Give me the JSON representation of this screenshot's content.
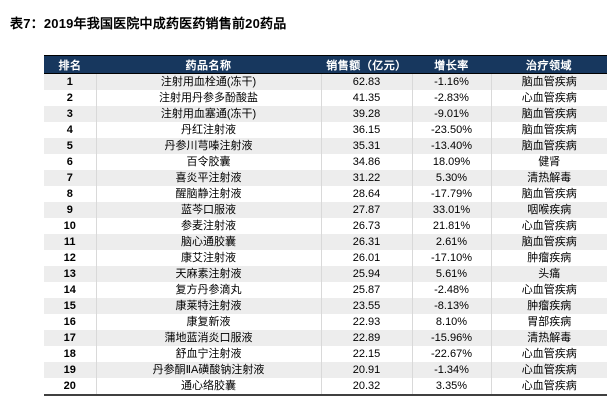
{
  "page": {
    "title": "表7：2019年我国医院中成药医药销售前20药品"
  },
  "colors": {
    "header_bg": "#17375E",
    "header_text": "#FFFFFF",
    "row_alt_bg": "#EDEDED",
    "column_divider": "#D9D9D9",
    "table_bottom_border": "#404040"
  },
  "chart_data": {
    "type": "table",
    "title": "表7：2019年我国医院中成药医药销售前20药品",
    "headers": [
      "排名",
      "药品名称",
      "销售额（亿元）",
      "增长率",
      "治疗领域"
    ],
    "rows": [
      {
        "rank": "1",
        "name": "注射用血栓通(冻干)",
        "sales": "62.83",
        "growth": "-1.16%",
        "area": "脑血管疾病"
      },
      {
        "rank": "2",
        "name": "注射用丹参多酚酸盐",
        "sales": "41.35",
        "growth": "-2.83%",
        "area": "心血管疾病"
      },
      {
        "rank": "3",
        "name": "注射用血塞通(冻干)",
        "sales": "39.28",
        "growth": "-9.01%",
        "area": "脑血管疾病"
      },
      {
        "rank": "4",
        "name": "丹红注射液",
        "sales": "36.15",
        "growth": "-23.50%",
        "area": "脑血管疾病"
      },
      {
        "rank": "5",
        "name": "丹参川芎嗪注射液",
        "sales": "35.31",
        "growth": "-13.40%",
        "area": "脑血管疾病"
      },
      {
        "rank": "6",
        "name": "百令胶囊",
        "sales": "34.86",
        "growth": "18.09%",
        "area": "健肾"
      },
      {
        "rank": "7",
        "name": "喜炎平注射液",
        "sales": "31.22",
        "growth": "5.30%",
        "area": "清热解毒"
      },
      {
        "rank": "8",
        "name": "醒脑静注射液",
        "sales": "28.64",
        "growth": "-17.79%",
        "area": "脑血管疾病"
      },
      {
        "rank": "9",
        "name": "蓝芩口服液",
        "sales": "27.87",
        "growth": "33.01%",
        "area": "咽喉疾病"
      },
      {
        "rank": "10",
        "name": "参麦注射液",
        "sales": "26.73",
        "growth": "21.81%",
        "area": "心血管疾病"
      },
      {
        "rank": "11",
        "name": "脑心通胶囊",
        "sales": "26.31",
        "growth": "2.61%",
        "area": "脑血管疾病"
      },
      {
        "rank": "12",
        "name": "康艾注射液",
        "sales": "26.01",
        "growth": "-17.10%",
        "area": "肿瘤疾病"
      },
      {
        "rank": "13",
        "name": "天麻素注射液",
        "sales": "25.94",
        "growth": "5.61%",
        "area": "头痛"
      },
      {
        "rank": "14",
        "name": "复方丹参滴丸",
        "sales": "25.87",
        "growth": "-2.48%",
        "area": "心血管疾病"
      },
      {
        "rank": "15",
        "name": "康莱特注射液",
        "sales": "23.55",
        "growth": "-8.13%",
        "area": "肿瘤疾病"
      },
      {
        "rank": "16",
        "name": "康复新液",
        "sales": "22.93",
        "growth": "8.10%",
        "area": "胃部疾病"
      },
      {
        "rank": "17",
        "name": "蒲地蓝消炎口服液",
        "sales": "22.89",
        "growth": "-15.96%",
        "area": "清热解毒"
      },
      {
        "rank": "18",
        "name": "舒血宁注射液",
        "sales": "22.15",
        "growth": "-22.67%",
        "area": "心血管疾病"
      },
      {
        "rank": "19",
        "name": "丹参酮ⅡA磺酸钠注射液",
        "sales": "20.91",
        "growth": "-1.34%",
        "area": "心血管疾病"
      },
      {
        "rank": "20",
        "name": "通心络胶囊",
        "sales": "20.32",
        "growth": "3.35%",
        "area": "心血管疾病"
      }
    ]
  }
}
